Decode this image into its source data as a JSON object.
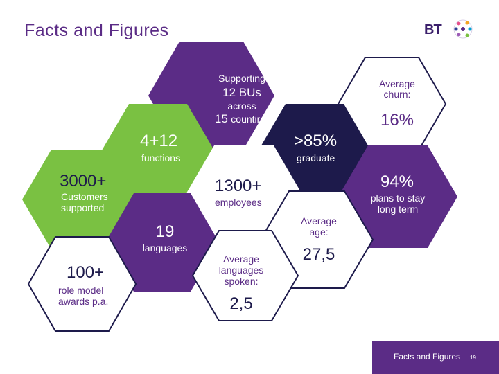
{
  "slide": {
    "title": "Facts and Figures",
    "logo": "BT",
    "footer_label": "Facts and Figures",
    "page_number": "19"
  },
  "colors": {
    "purple": "#5b2c86",
    "navy": "#1d1a4b",
    "green": "#7ac142",
    "white": "#ffffff",
    "outline": "#1d1a4b"
  },
  "hexagons": {
    "bus": {
      "line1": "Supporting",
      "line2": "12 BUs",
      "line3": "across",
      "line4_num": "15",
      "line4_text": "countires"
    },
    "churn": {
      "label": "Average churn:",
      "value": "16%"
    },
    "functions": {
      "value": "4+12",
      "label": "functions"
    },
    "graduate": {
      "value": ">85%",
      "label": "graduate"
    },
    "customers": {
      "value": "3000+",
      "label_1": "Customers",
      "label_2": "supported"
    },
    "employees": {
      "value": "1300+",
      "label": "employees"
    },
    "stay": {
      "value": "94%",
      "label_1": "plans to stay",
      "label_2": "long term"
    },
    "languages": {
      "value": "19",
      "label": "languages"
    },
    "age": {
      "label_1": "Average",
      "label_2": "age:",
      "value": "27,5"
    },
    "awards": {
      "value": "100+",
      "label_1": "role model",
      "label_2": "awards p.a."
    },
    "spoken": {
      "label_1": "Average",
      "label_2": "languages",
      "label_3": "spoken:",
      "value": "2,5"
    }
  }
}
